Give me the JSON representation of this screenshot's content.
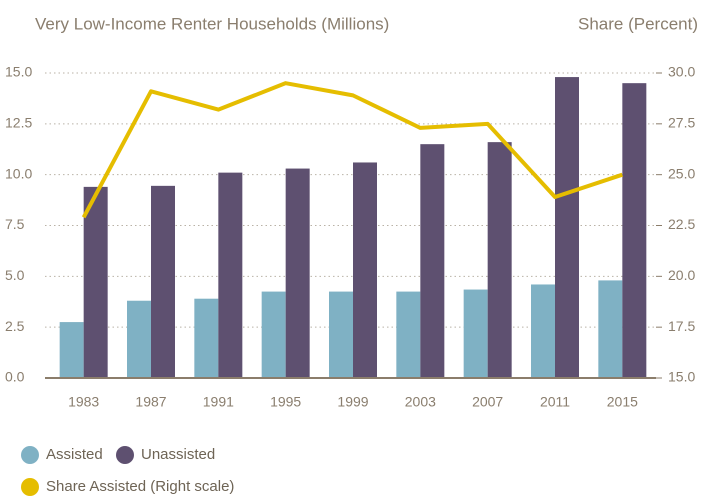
{
  "chart_data": {
    "type": "bar",
    "y_label": "Very Low-Income Renter Households (Millions)",
    "y2_label": "Share (Percent)",
    "categories": [
      "1983",
      "1987",
      "1991",
      "1995",
      "1999",
      "2003",
      "2007",
      "2011",
      "2015"
    ],
    "series": [
      {
        "name": "Assisted",
        "color": "#7fb1c4",
        "values": [
          2.75,
          3.8,
          3.9,
          4.25,
          4.25,
          4.25,
          4.35,
          4.6,
          4.8
        ]
      },
      {
        "name": "Unassisted",
        "color": "#5e5070",
        "values": [
          9.4,
          9.45,
          10.1,
          10.3,
          10.6,
          11.5,
          11.6,
          14.8,
          14.5
        ]
      },
      {
        "name": "Share Assisted (Right scale)",
        "color": "#e5bd00",
        "type": "line",
        "axis": "y2",
        "values": [
          22.9,
          29.1,
          28.2,
          29.5,
          28.9,
          27.3,
          27.5,
          23.9,
          25.0
        ]
      }
    ],
    "ylim": [
      0,
      15
    ],
    "yticks": [
      {
        "value": 0,
        "label": "0.0"
      },
      2.5,
      {
        "value": 5,
        "label": "5.0"
      },
      7.5,
      {
        "value": 10,
        "label": "10.0"
      },
      12.5,
      {
        "value": 15,
        "label": "15.0"
      }
    ],
    "y2lim": [
      15,
      30
    ],
    "y2ticks": [
      {
        "value": 15,
        "label": "15.0"
      },
      17.5,
      {
        "value": 20,
        "label": "20.0"
      },
      22.5,
      {
        "value": 25,
        "label": "25.0"
      },
      27.5,
      {
        "value": 30,
        "label": "30.0"
      }
    ],
    "grid": true
  }
}
